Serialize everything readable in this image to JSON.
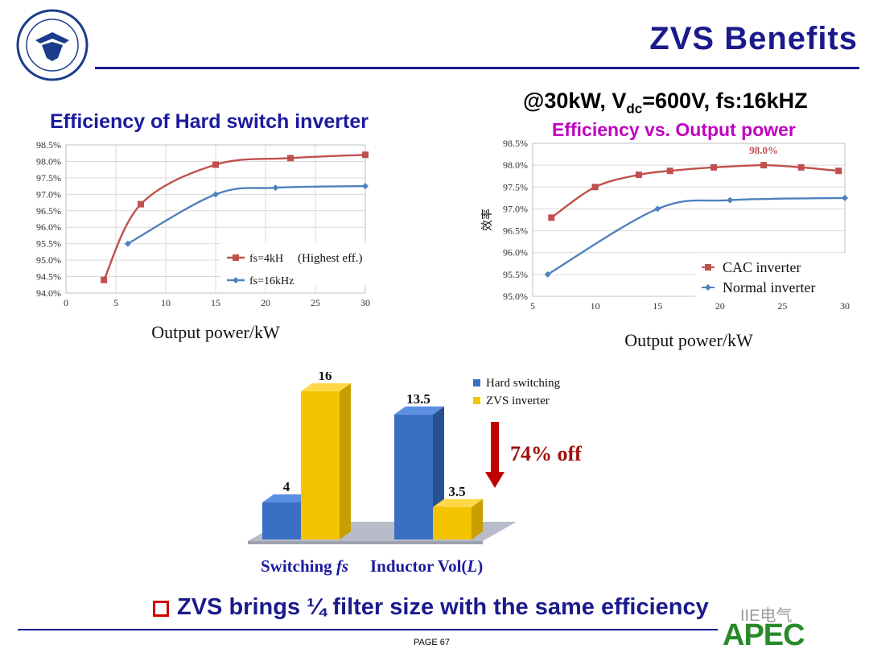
{
  "header": {
    "title": "ZVS  Benefits"
  },
  "logo": {
    "text_top": "浙 江 大 学",
    "text_bottom": "ZHEJIANG UNIVERSITY",
    "year": "1897"
  },
  "conditions": {
    "prefix": "@30kW, V",
    "sub": "dc",
    "suffix": "=600V, fs:16kHZ"
  },
  "chart_data": [
    {
      "type": "line",
      "title": "Efficiency of Hard switch inverter",
      "xlabel": "Output power/kW",
      "ylabel": "",
      "xlim": [
        0,
        30
      ],
      "ylim": [
        94.0,
        98.5
      ],
      "x_ticks": [
        "0",
        "5",
        "10",
        "15",
        "20",
        "25",
        "30"
      ],
      "y_ticks": [
        "94.0%",
        "94.5%",
        "95.0%",
        "95.5%",
        "96.0%",
        "96.5%",
        "97.0%",
        "97.5%",
        "98.0%",
        "98.5%"
      ],
      "series": [
        {
          "name": "fs=4kH",
          "color": "#c0504d",
          "marker": "square",
          "x": [
            3.8,
            7.5,
            15,
            22.5,
            30
          ],
          "y": [
            94.4,
            96.7,
            97.9,
            98.1,
            98.2
          ]
        },
        {
          "name": "fs=16kHz",
          "color": "#4f81bd",
          "marker": "diamond",
          "x": [
            6.2,
            15,
            21,
            30
          ],
          "y": [
            95.5,
            97.0,
            97.2,
            97.25
          ]
        }
      ],
      "annotation": "(Highest eff.)",
      "legend": "center-right"
    },
    {
      "type": "line",
      "title": "Efficiency vs. Output power",
      "xlabel": "Output power/kW",
      "ylabel": "效率",
      "xlim": [
        5,
        30
      ],
      "ylim": [
        95.0,
        98.5
      ],
      "x_ticks": [
        "5",
        "10",
        "15",
        "20",
        "25",
        "30"
      ],
      "y_ticks": [
        "95.0%",
        "95.5%",
        "96.0%",
        "96.5%",
        "97.0%",
        "97.5%",
        "98.0%",
        "98.5%"
      ],
      "series": [
        {
          "name": "CAC inverter",
          "color": "#c0504d",
          "marker": "square",
          "x": [
            6.5,
            10,
            13.5,
            16,
            19.5,
            23.5,
            26.5,
            29.5
          ],
          "y": [
            96.8,
            97.5,
            97.78,
            97.87,
            97.95,
            98.0,
            97.95,
            97.87
          ]
        },
        {
          "name": "Normal inverter",
          "color": "#4f81bd",
          "marker": "diamond",
          "x": [
            6.2,
            15,
            20.8,
            30
          ],
          "y": [
            95.5,
            97.0,
            97.2,
            97.25
          ]
        }
      ],
      "annotation": "98.0%",
      "legend": "bottom-right"
    },
    {
      "type": "bar",
      "categories": [
        "Switching fs",
        "Inductor Vol(L)"
      ],
      "series": [
        {
          "name": "Hard switching",
          "color": "#3a6fc4",
          "values": [
            4,
            13.5
          ]
        },
        {
          "name": "ZVS inverter",
          "color": "#f5c400",
          "values": [
            16,
            3.5
          ]
        }
      ],
      "annotation": "74% off",
      "legend": "top-right"
    }
  ],
  "footer": {
    "conclusion": "ZVS brings ¼ filter size with the same efficiency",
    "page": "PAGE 67",
    "watermark": "IIE电气",
    "brand": "APEC"
  }
}
